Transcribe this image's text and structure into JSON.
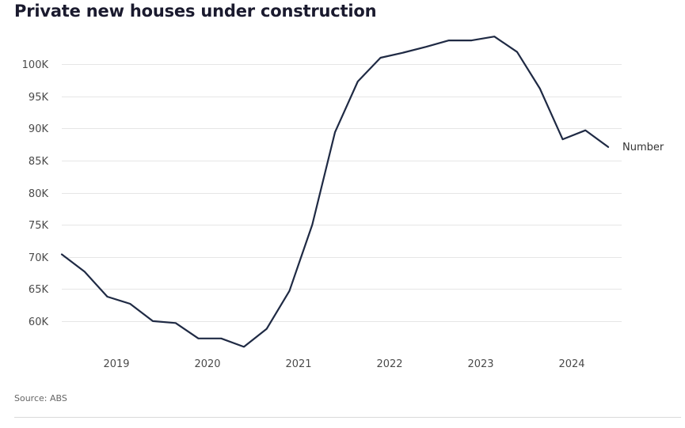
{
  "title": "Private new houses under construction",
  "source": "Source: ABS",
  "colors": {
    "line": "#1f2a44",
    "grid": "#e6e6e6",
    "text": "#4a4a4a"
  },
  "chart_data": {
    "type": "line",
    "title": "Private new houses under construction",
    "xlabel": "",
    "ylabel": "",
    "ylim": [
      55000,
      105000
    ],
    "xlim": [
      2018.0,
      2024.75
    ],
    "y_ticks": [
      {
        "value": 60000,
        "label": "60K"
      },
      {
        "value": 65000,
        "label": "65K"
      },
      {
        "value": 70000,
        "label": "70K"
      },
      {
        "value": 75000,
        "label": "75K"
      },
      {
        "value": 80000,
        "label": "80K"
      },
      {
        "value": 85000,
        "label": "85K"
      },
      {
        "value": 90000,
        "label": "90K"
      },
      {
        "value": 95000,
        "label": "95K"
      },
      {
        "value": 100000,
        "label": "100K"
      }
    ],
    "x_ticks": [
      {
        "value": 2019,
        "label": "2019"
      },
      {
        "value": 2020,
        "label": "2020"
      },
      {
        "value": 2021,
        "label": "2021"
      },
      {
        "value": 2022,
        "label": "2022"
      },
      {
        "value": 2023,
        "label": "2023"
      },
      {
        "value": 2024,
        "label": "2024"
      }
    ],
    "grid": true,
    "series": [
      {
        "name": "Number",
        "x": [
          2018.25,
          2018.5,
          2018.75,
          2019.0,
          2019.25,
          2019.5,
          2019.75,
          2020.0,
          2020.25,
          2020.5,
          2020.75,
          2021.0,
          2021.25,
          2021.5,
          2021.75,
          2022.0,
          2022.25,
          2022.5,
          2022.75,
          2023.0,
          2023.25,
          2023.5,
          2023.75,
          2024.0,
          2024.25
        ],
        "values": [
          70400,
          67700,
          63800,
          62700,
          60000,
          59700,
          57300,
          57300,
          56000,
          58800,
          64700,
          75000,
          89400,
          97300,
          101000,
          101800,
          102700,
          103700,
          103700,
          104300,
          101900,
          96200,
          88300,
          89700,
          87100
        ]
      }
    ]
  }
}
